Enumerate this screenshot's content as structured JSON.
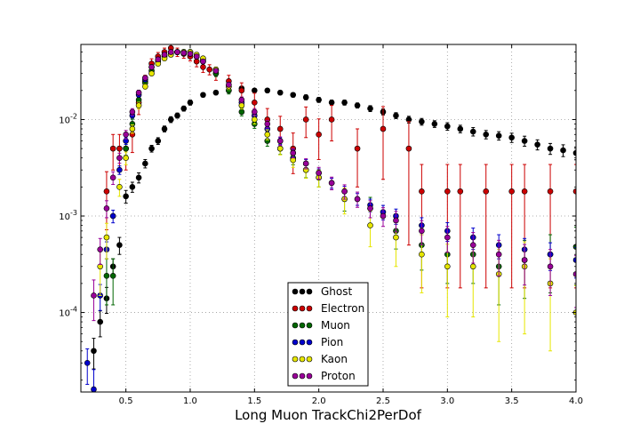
{
  "chart_data": {
    "type": "scatter",
    "title": "",
    "xlabel": "Long Muon TrackChi2PerDof",
    "ylabel": "",
    "xlim": [
      0.15,
      4.0
    ],
    "ylim": [
      1.5e-05,
      0.06
    ],
    "yscale": "log",
    "grid": true,
    "legend_position": "lower-center",
    "x_ticks": [
      {
        "value": 0.5,
        "label": "0.5"
      },
      {
        "value": 1.0,
        "label": "1.0"
      },
      {
        "value": 1.5,
        "label": "1.5"
      },
      {
        "value": 2.0,
        "label": "2.0"
      },
      {
        "value": 2.5,
        "label": "2.5"
      },
      {
        "value": 3.0,
        "label": "3.0"
      },
      {
        "value": 3.5,
        "label": "3.5"
      },
      {
        "value": 4.0,
        "label": "4.0"
      }
    ],
    "y_ticks": [
      {
        "value": 0.0001,
        "base": "10",
        "exp": "-4"
      },
      {
        "value": 0.001,
        "base": "10",
        "exp": "-3"
      },
      {
        "value": 0.01,
        "base": "10",
        "exp": "-2"
      }
    ],
    "series": [
      {
        "name": "Ghost",
        "color": "#000000",
        "x": [
          0.25,
          0.3,
          0.35,
          0.4,
          0.45,
          0.5,
          0.55,
          0.6,
          0.65,
          0.7,
          0.75,
          0.8,
          0.85,
          0.9,
          0.95,
          1.0,
          1.1,
          1.2,
          1.3,
          1.4,
          1.5,
          1.6,
          1.7,
          1.8,
          1.9,
          2.0,
          2.1,
          2.2,
          2.3,
          2.4,
          2.5,
          2.6,
          2.7,
          2.8,
          2.9,
          3.0,
          3.1,
          3.2,
          3.3,
          3.4,
          3.5,
          3.6,
          3.7,
          3.8,
          3.9,
          4.0
        ],
        "y": [
          4e-05,
          8e-05,
          0.00014,
          0.0003,
          0.0005,
          0.0016,
          0.002,
          0.0025,
          0.0035,
          0.005,
          0.006,
          0.008,
          0.01,
          0.011,
          0.013,
          0.015,
          0.018,
          0.019,
          0.02,
          0.021,
          0.02,
          0.02,
          0.019,
          0.018,
          0.017,
          0.016,
          0.015,
          0.015,
          0.014,
          0.013,
          0.012,
          0.011,
          0.01,
          0.0095,
          0.009,
          0.0085,
          0.008,
          0.0075,
          0.007,
          0.0068,
          0.0065,
          0.006,
          0.0055,
          0.005,
          0.0048,
          0.0045
        ],
        "err": [
          0.35,
          0.3,
          0.3,
          0.2,
          0.2,
          0.15,
          0.12,
          0.12,
          0.1,
          0.08,
          0.08,
          0.07,
          0.07,
          0.06,
          0.06,
          0.06,
          0.05,
          0.05,
          0.05,
          0.05,
          0.05,
          0.05,
          0.05,
          0.05,
          0.06,
          0.06,
          0.06,
          0.06,
          0.06,
          0.07,
          0.07,
          0.07,
          0.08,
          0.08,
          0.08,
          0.09,
          0.09,
          0.1,
          0.1,
          0.1,
          0.11,
          0.12,
          0.12,
          0.13,
          0.14,
          0.15
        ]
      },
      {
        "name": "Electron",
        "color": "#cc0000",
        "x": [
          0.35,
          0.4,
          0.45,
          0.5,
          0.55,
          0.6,
          0.65,
          0.7,
          0.75,
          0.8,
          0.85,
          0.9,
          0.95,
          1.0,
          1.05,
          1.1,
          1.15,
          1.2,
          1.3,
          1.4,
          1.5,
          1.6,
          1.7,
          1.8,
          1.9,
          2.0,
          2.1,
          2.3,
          2.5,
          2.7,
          2.8,
          3.0,
          3.1,
          3.3,
          3.5,
          3.6,
          3.8,
          4.0
        ],
        "y": [
          0.0018,
          0.005,
          0.005,
          0.005,
          0.007,
          0.015,
          0.025,
          0.038,
          0.045,
          0.05,
          0.055,
          0.05,
          0.048,
          0.045,
          0.04,
          0.035,
          0.033,
          0.03,
          0.025,
          0.02,
          0.015,
          0.01,
          0.008,
          0.005,
          0.01,
          0.007,
          0.01,
          0.005,
          0.008,
          0.005,
          0.0018,
          0.0018,
          0.0018,
          0.0018,
          0.0018,
          0.0018,
          0.0018,
          0.0018
        ],
        "err": [
          0.6,
          0.4,
          0.4,
          0.4,
          0.35,
          0.25,
          0.15,
          0.12,
          0.1,
          0.1,
          0.1,
          0.1,
          0.1,
          0.1,
          0.12,
          0.12,
          0.12,
          0.15,
          0.15,
          0.2,
          0.25,
          0.3,
          0.35,
          0.45,
          0.35,
          0.45,
          0.4,
          0.6,
          0.7,
          0.9,
          0.9,
          0.9,
          0.9,
          0.9,
          0.9,
          0.9,
          0.9,
          0.9
        ]
      },
      {
        "name": "Muon",
        "color": "#006600",
        "x": [
          0.35,
          0.4,
          0.5,
          0.55,
          0.6,
          0.65,
          0.7,
          0.75,
          0.8,
          0.85,
          0.9,
          0.95,
          1.0,
          1.05,
          1.1,
          1.2,
          1.3,
          1.4,
          1.5,
          1.6,
          1.7,
          1.8,
          1.9,
          2.0,
          2.2,
          2.4,
          2.6,
          2.8,
          3.0,
          3.2,
          3.4,
          3.6,
          3.8,
          4.0
        ],
        "y": [
          0.00024,
          0.00024,
          0.005,
          0.009,
          0.016,
          0.024,
          0.032,
          0.04,
          0.045,
          0.048,
          0.05,
          0.05,
          0.05,
          0.045,
          0.042,
          0.03,
          0.02,
          0.012,
          0.009,
          0.006,
          0.005,
          0.004,
          0.003,
          0.0025,
          0.0015,
          0.0012,
          0.0007,
          0.0005,
          0.0004,
          0.0004,
          0.0003,
          0.00035,
          0.0004,
          0.00048
        ],
        "err": [
          0.5,
          0.5,
          0.15,
          0.12,
          0.1,
          0.08,
          0.07,
          0.06,
          0.06,
          0.06,
          0.06,
          0.06,
          0.06,
          0.06,
          0.06,
          0.07,
          0.08,
          0.09,
          0.1,
          0.12,
          0.13,
          0.15,
          0.17,
          0.2,
          0.25,
          0.3,
          0.35,
          0.45,
          0.5,
          0.5,
          0.6,
          0.6,
          0.6,
          0.6
        ]
      },
      {
        "name": "Pion",
        "color": "#0000cc",
        "x": [
          0.2,
          0.25,
          0.3,
          0.35,
          0.4,
          0.45,
          0.5,
          0.55,
          0.6,
          0.65,
          0.7,
          0.75,
          0.8,
          0.85,
          0.9,
          0.95,
          1.0,
          1.05,
          1.1,
          1.2,
          1.3,
          1.4,
          1.5,
          1.6,
          1.7,
          1.8,
          1.9,
          2.0,
          2.1,
          2.2,
          2.3,
          2.4,
          2.5,
          2.6,
          2.8,
          3.0,
          3.2,
          3.4,
          3.6,
          3.8,
          4.0
        ],
        "y": [
          3e-05,
          1.6e-05,
          0.00015,
          0.00045,
          0.001,
          0.003,
          0.006,
          0.011,
          0.018,
          0.026,
          0.035,
          0.042,
          0.047,
          0.05,
          0.05,
          0.049,
          0.048,
          0.045,
          0.04,
          0.032,
          0.022,
          0.015,
          0.011,
          0.008,
          0.006,
          0.0045,
          0.0035,
          0.0028,
          0.0022,
          0.0018,
          0.0015,
          0.0013,
          0.0011,
          0.001,
          0.0008,
          0.0007,
          0.0006,
          0.0005,
          0.00045,
          0.0004,
          0.00035
        ],
        "err": [
          0.4,
          0.6,
          0.3,
          0.2,
          0.15,
          0.1,
          0.08,
          0.06,
          0.05,
          0.04,
          0.04,
          0.04,
          0.04,
          0.04,
          0.04,
          0.04,
          0.04,
          0.04,
          0.04,
          0.04,
          0.05,
          0.06,
          0.06,
          0.07,
          0.08,
          0.09,
          0.1,
          0.1,
          0.12,
          0.13,
          0.14,
          0.15,
          0.17,
          0.18,
          0.2,
          0.22,
          0.25,
          0.28,
          0.3,
          0.32,
          0.35
        ]
      },
      {
        "name": "Kaon",
        "color": "#e6e600",
        "x": [
          0.3,
          0.35,
          0.45,
          0.5,
          0.55,
          0.6,
          0.65,
          0.7,
          0.75,
          0.8,
          0.85,
          0.9,
          0.95,
          1.0,
          1.05,
          1.1,
          1.2,
          1.3,
          1.4,
          1.5,
          1.6,
          1.7,
          1.8,
          1.9,
          2.0,
          2.2,
          2.4,
          2.6,
          2.8,
          3.0,
          3.2,
          3.4,
          3.6,
          3.8,
          4.0
        ],
        "y": [
          0.0003,
          0.0006,
          0.002,
          0.004,
          0.008,
          0.014,
          0.022,
          0.03,
          0.038,
          0.043,
          0.047,
          0.05,
          0.05,
          0.05,
          0.047,
          0.043,
          0.033,
          0.022,
          0.014,
          0.01,
          0.007,
          0.005,
          0.0038,
          0.003,
          0.0025,
          0.0015,
          0.0008,
          0.0006,
          0.0004,
          0.0003,
          0.0003,
          0.00025,
          0.0003,
          0.0002,
          0.0001
        ],
        "err": [
          0.5,
          0.4,
          0.2,
          0.15,
          0.1,
          0.08,
          0.06,
          0.05,
          0.05,
          0.05,
          0.05,
          0.05,
          0.05,
          0.05,
          0.05,
          0.05,
          0.06,
          0.07,
          0.08,
          0.1,
          0.12,
          0.14,
          0.16,
          0.18,
          0.2,
          0.3,
          0.4,
          0.5,
          0.6,
          0.7,
          0.7,
          0.8,
          0.8,
          0.8,
          0.9
        ]
      },
      {
        "name": "Proton",
        "color": "#990099",
        "x": [
          0.25,
          0.3,
          0.35,
          0.4,
          0.45,
          0.5,
          0.55,
          0.6,
          0.65,
          0.7,
          0.75,
          0.8,
          0.85,
          0.9,
          0.95,
          1.0,
          1.05,
          1.1,
          1.2,
          1.3,
          1.4,
          1.5,
          1.6,
          1.7,
          1.8,
          1.9,
          2.0,
          2.1,
          2.2,
          2.3,
          2.4,
          2.5,
          2.6,
          2.8,
          3.0,
          3.2,
          3.4,
          3.6,
          3.8,
          4.0
        ],
        "y": [
          0.00015,
          0.00045,
          0.0012,
          0.0025,
          0.004,
          0.007,
          0.012,
          0.019,
          0.027,
          0.035,
          0.042,
          0.047,
          0.05,
          0.05,
          0.049,
          0.048,
          0.045,
          0.04,
          0.032,
          0.023,
          0.016,
          0.012,
          0.009,
          0.006,
          0.0045,
          0.0035,
          0.0028,
          0.0022,
          0.0018,
          0.0015,
          0.0012,
          0.001,
          0.0009,
          0.0007,
          0.0006,
          0.0005,
          0.0004,
          0.00035,
          0.0003,
          0.00025
        ],
        "err": [
          0.45,
          0.3,
          0.2,
          0.15,
          0.12,
          0.1,
          0.08,
          0.06,
          0.05,
          0.05,
          0.05,
          0.05,
          0.05,
          0.05,
          0.05,
          0.05,
          0.05,
          0.05,
          0.05,
          0.06,
          0.07,
          0.08,
          0.09,
          0.1,
          0.11,
          0.12,
          0.14,
          0.15,
          0.17,
          0.18,
          0.2,
          0.22,
          0.24,
          0.28,
          0.3,
          0.35,
          0.4,
          0.45,
          0.5,
          0.55
        ]
      }
    ]
  }
}
